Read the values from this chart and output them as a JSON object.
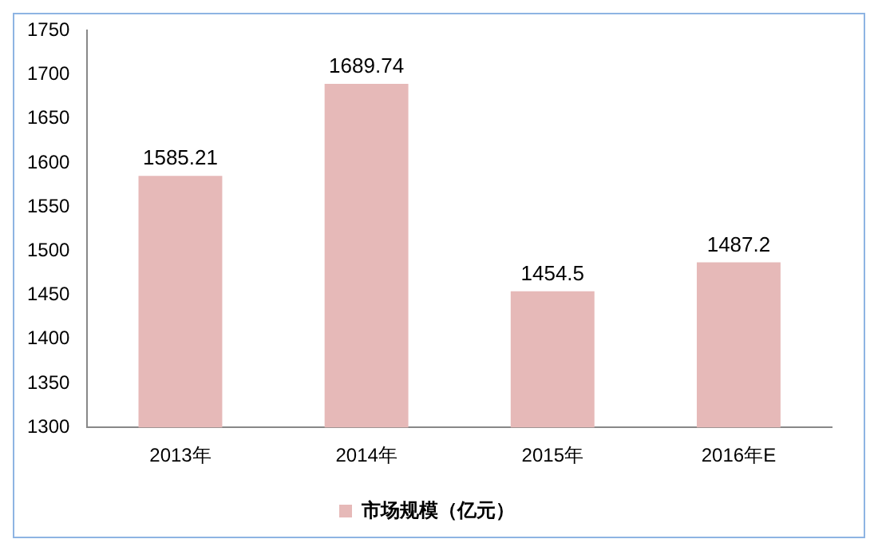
{
  "chart_data": {
    "type": "bar",
    "categories": [
      "2013年",
      "2014年",
      "2015年",
      "2016年E"
    ],
    "series": [
      {
        "name": "市场规模（亿元）",
        "color": "#e6b9b8",
        "values": [
          1585.21,
          1689.74,
          1454.5,
          1487.2
        ]
      }
    ],
    "ylim": [
      1300,
      1750
    ],
    "yticks": [
      1300,
      1350,
      1400,
      1450,
      1500,
      1550,
      1600,
      1650,
      1700,
      1750
    ],
    "grid": false,
    "legend": "bottom",
    "data_labels": true
  }
}
